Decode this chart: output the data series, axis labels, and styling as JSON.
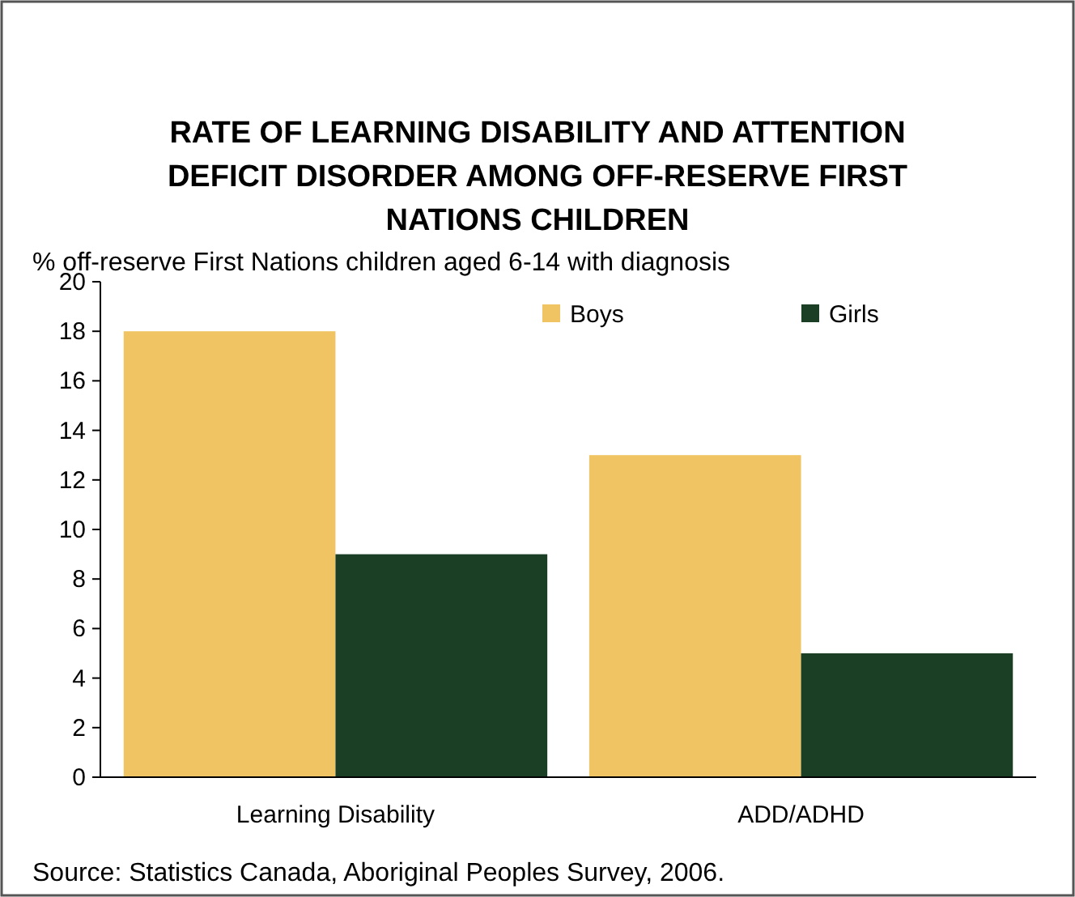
{
  "chart_data": {
    "type": "bar",
    "title": "RATE OF LEARNING DISABILITY AND ATTENTION DEFICIT DISORDER AMONG OFF-RESERVE FIRST NATIONS CHILDREN",
    "ylabel": "% off-reserve First Nations children aged 6-14 with diagnosis",
    "categories": [
      "Learning Disability",
      "ADD/ADHD"
    ],
    "series": [
      {
        "name": "Boys",
        "color": "#f0c462",
        "values": [
          18,
          13
        ]
      },
      {
        "name": "Girls",
        "color": "#1a3f24",
        "values": [
          9,
          5
        ]
      }
    ],
    "ylim": [
      0,
      20
    ],
    "yticks": [
      0,
      2,
      4,
      6,
      8,
      10,
      12,
      14,
      16,
      18,
      20
    ],
    "grid": false,
    "legend": "top right",
    "annotations": [
      "Source: Statistics Canada, Aboriginal Peoples Survey, 2006."
    ]
  }
}
